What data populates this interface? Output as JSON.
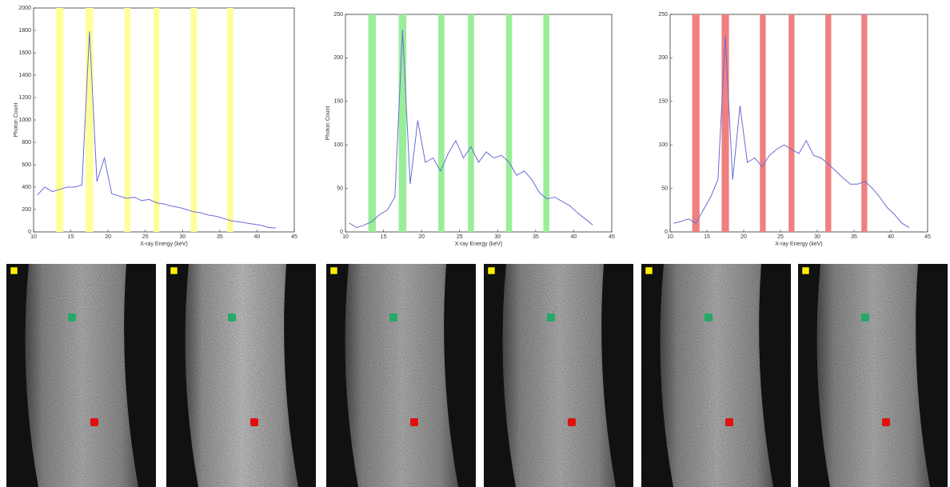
{
  "chart_data": [
    {
      "type": "line",
      "xlabel": "X-ray Energy (keV)",
      "ylabel": "Photon Count",
      "x": [
        10.5,
        11.5,
        12.5,
        13.5,
        14.5,
        15.5,
        16.5,
        17.5,
        18.5,
        19.5,
        20.5,
        21.5,
        22.5,
        23.5,
        24.5,
        25.5,
        26.5,
        27.5,
        28.5,
        29.5,
        30.5,
        31.5,
        32.5,
        33.5,
        34.5,
        35.5,
        36.5,
        37.5,
        38.5,
        39.5,
        40.5,
        41.5,
        42.5
      ],
      "values": [
        330,
        400,
        360,
        380,
        400,
        400,
        420,
        1790,
        450,
        660,
        340,
        320,
        300,
        310,
        280,
        290,
        260,
        250,
        230,
        220,
        200,
        180,
        170,
        150,
        140,
        120,
        100,
        90,
        80,
        70,
        60,
        40,
        35
      ],
      "color": "#6b6bd6",
      "bands": [
        [
          13,
          14
        ],
        [
          17,
          18
        ],
        [
          22.2,
          23
        ],
        [
          26.1,
          26.9
        ],
        [
          31.1,
          31.9
        ],
        [
          36,
          36.8
        ]
      ],
      "band_color": "#ffff99",
      "xlim": [
        10,
        45
      ],
      "xticks": [
        10,
        15,
        20,
        25,
        30,
        35,
        40,
        45
      ],
      "ylim": [
        0,
        2000
      ],
      "yticks": [
        0,
        200,
        400,
        600,
        800,
        1000,
        1200,
        1400,
        1600,
        1800,
        2000
      ]
    },
    {
      "type": "line",
      "xlabel": "X-ray Energy (keV)",
      "ylabel": "Photon Count",
      "x": [
        10.5,
        11.5,
        12.5,
        13.5,
        14.5,
        15.5,
        16.5,
        17.5,
        18.5,
        19.5,
        20.5,
        21.5,
        22.5,
        23.5,
        24.5,
        25.5,
        26.5,
        27.5,
        28.5,
        29.5,
        30.5,
        31.5,
        32.5,
        33.5,
        34.5,
        35.5,
        36.5,
        37.5,
        38.5,
        39.5,
        40.5,
        41.5,
        42.5
      ],
      "values": [
        10,
        5,
        8,
        12,
        20,
        25,
        40,
        232,
        55,
        128,
        80,
        85,
        70,
        90,
        105,
        85,
        98,
        80,
        92,
        85,
        88,
        80,
        65,
        70,
        60,
        45,
        38,
        40,
        35,
        30,
        22,
        15,
        8
      ],
      "color": "#6b6bd6",
      "bands": [
        [
          13,
          14
        ],
        [
          17,
          18
        ],
        [
          22.2,
          23
        ],
        [
          26.1,
          26.9
        ],
        [
          31.1,
          31.9
        ],
        [
          36,
          36.8
        ]
      ],
      "band_color": "#99ee99",
      "xlim": [
        10,
        45
      ],
      "xticks": [
        10,
        15,
        20,
        25,
        30,
        35,
        40,
        45
      ],
      "ylim": [
        0,
        250
      ],
      "yticks": [
        0,
        50,
        100,
        150,
        200,
        250
      ]
    },
    {
      "type": "line",
      "xlabel": "X-ray Energy (keV)",
      "x": [
        10.5,
        11.5,
        12.5,
        13.5,
        14.5,
        15.5,
        16.5,
        17.5,
        18.5,
        19.5,
        20.5,
        21.5,
        22.5,
        23.5,
        24.5,
        25.5,
        26.5,
        27.5,
        28.5,
        29.5,
        30.5,
        31.5,
        32.5,
        33.5,
        34.5,
        35.5,
        36.5,
        37.5,
        38.5,
        39.5,
        40.5,
        41.5,
        42.5
      ],
      "values": [
        10,
        12,
        15,
        10,
        25,
        40,
        60,
        225,
        60,
        145,
        80,
        85,
        75,
        88,
        95,
        100,
        95,
        90,
        105,
        88,
        85,
        78,
        70,
        62,
        55,
        55,
        58,
        50,
        40,
        28,
        20,
        10,
        5
      ],
      "color": "#6b6bd6",
      "bands": [
        [
          13,
          14
        ],
        [
          17,
          18
        ],
        [
          22.2,
          23
        ],
        [
          26.1,
          26.9
        ],
        [
          31.1,
          31.9
        ],
        [
          36,
          36.8
        ]
      ],
      "band_color": "#f08080",
      "xlim": [
        10,
        45
      ],
      "xticks": [
        10,
        15,
        20,
        25,
        30,
        35,
        40,
        45
      ],
      "ylim": [
        0,
        250
      ],
      "yticks": [
        0,
        50,
        100,
        150,
        200,
        250
      ]
    }
  ]
}
